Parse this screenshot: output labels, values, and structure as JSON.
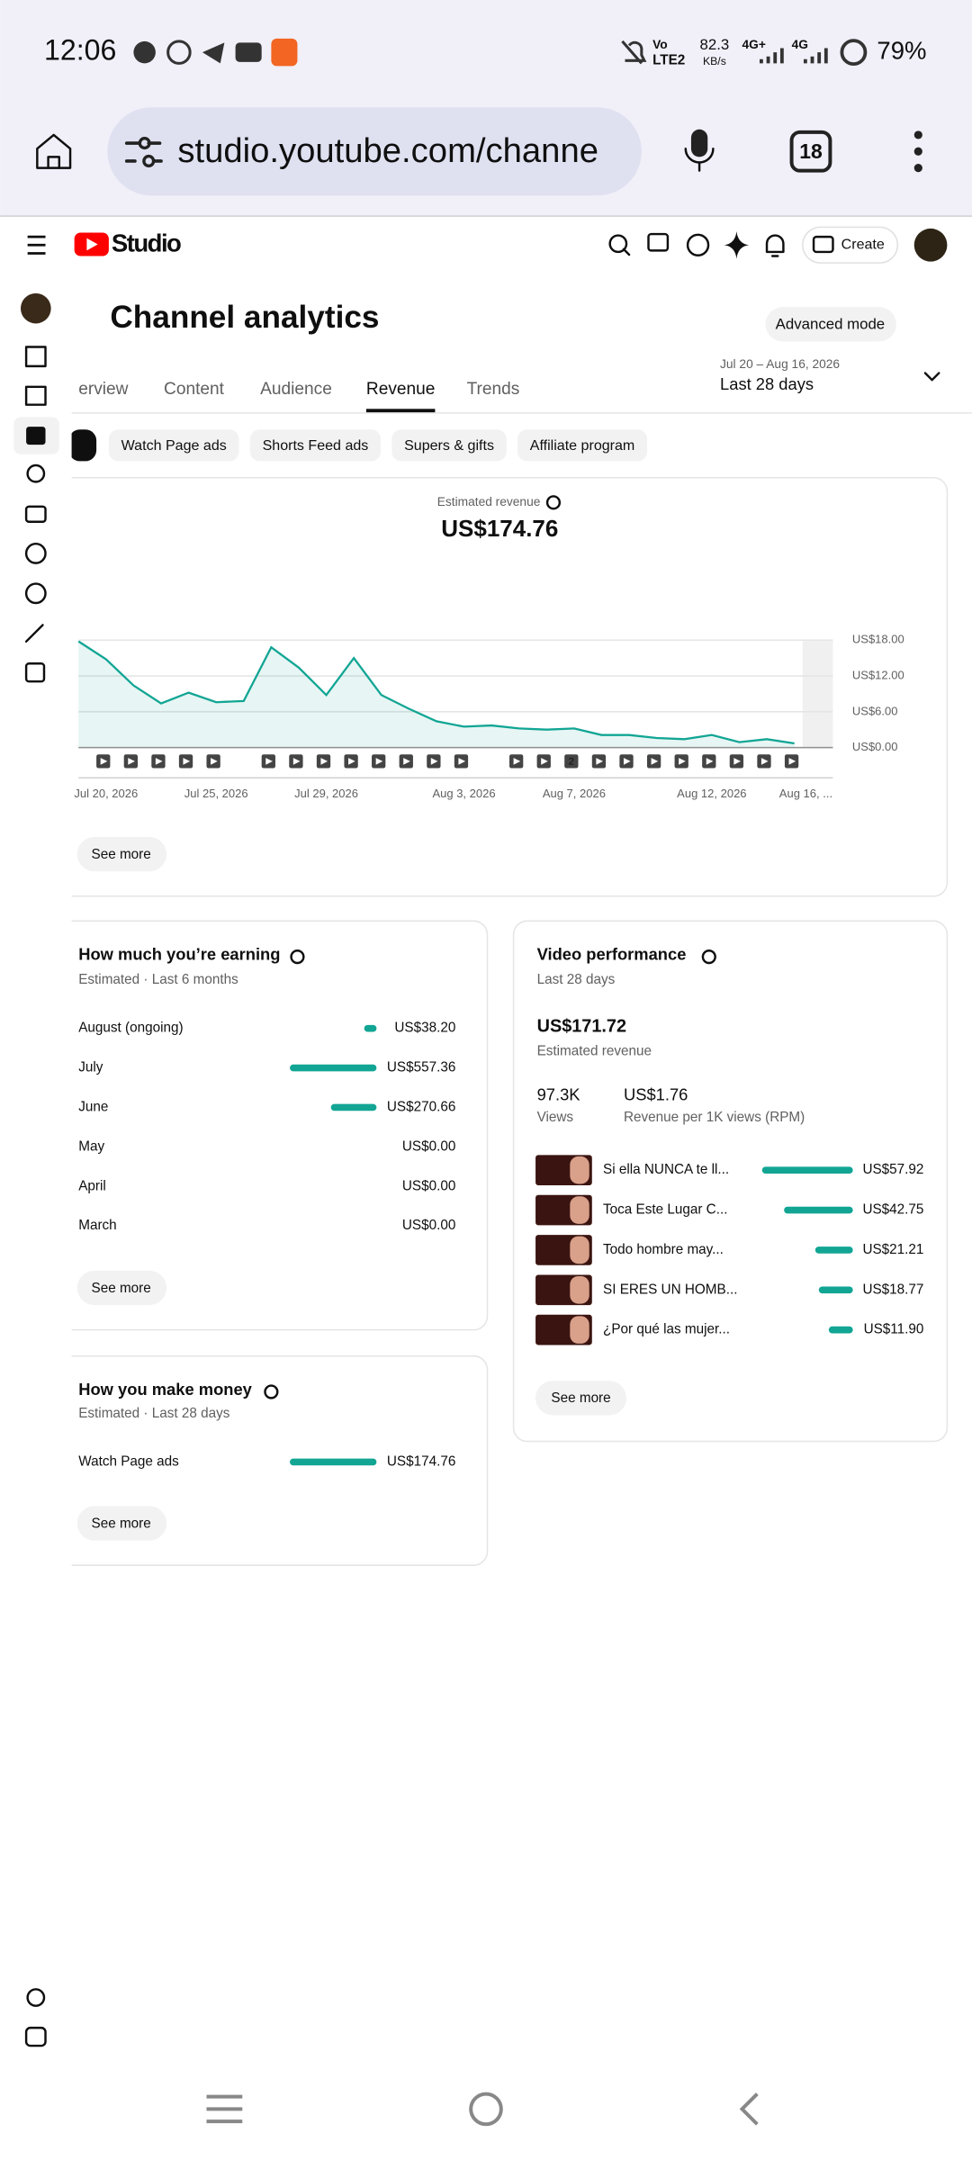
{
  "status_bar": {
    "time": "12:06",
    "volte": "LTE2",
    "speed": "82.3",
    "speed_unit": "KB/s",
    "net1": "4G+",
    "net2": "4G",
    "battery": "79%"
  },
  "browser": {
    "url": "studio.youtube.com/channe",
    "tabs": "18"
  },
  "header": {
    "brand": "Studio",
    "create": "Create"
  },
  "page": {
    "title": "Channel analytics",
    "advanced": "Advanced mode",
    "tabs": [
      "erview",
      "Content",
      "Audience",
      "Revenue",
      "Trends"
    ],
    "date_range": "Jul 20 – Aug 16, 2026",
    "period": "Last 28 days",
    "chips": [
      "Watch Page ads",
      "Shorts Feed ads",
      "Supers & gifts",
      "Affiliate program"
    ]
  },
  "chart_data": {
    "type": "line",
    "title": "Estimated revenue",
    "subtitle": "US$174.76",
    "categories": [
      "Jul 20, 2026",
      null,
      null,
      null,
      null,
      "Jul 25, 2026",
      null,
      null,
      null,
      "Jul 29, 2026",
      null,
      null,
      null,
      null,
      "Aug 3, 2026",
      null,
      null,
      null,
      "Aug 7, 2026",
      null,
      null,
      null,
      null,
      "Aug 12, 2026",
      null,
      null,
      null,
      "Aug 16, ..."
    ],
    "values": [
      17.8,
      14.8,
      10.4,
      7.4,
      9.2,
      7.6,
      7.8,
      16.8,
      13.4,
      8.8,
      15.0,
      8.8,
      6.5,
      4.4,
      3.5,
      3.7,
      3.2,
      3.0,
      3.2,
      2.1,
      2.1,
      1.6,
      1.4,
      2.1,
      0.9,
      1.4,
      0.7,
      null
    ],
    "color": "#12a594",
    "ylim": [
      0,
      18
    ],
    "yticks": [
      {
        "value": 0,
        "label": "US$0.00"
      },
      {
        "value": 6,
        "label": "US$6.00"
      },
      {
        "value": 12,
        "label": "US$12.00"
      },
      {
        "value": 18,
        "label": "US$18.00"
      }
    ],
    "grid": true,
    "marker_label": "2"
  },
  "chart_card": {
    "see_more": "See more"
  },
  "earning": {
    "title": "How much you’re earning",
    "subtitle": "Estimated · Last 6 months",
    "rows": [
      {
        "label": "August (ongoing)",
        "value": 38.2,
        "value_label": "US$38.20"
      },
      {
        "label": "July",
        "value": 557.36,
        "value_label": "US$557.36"
      },
      {
        "label": "June",
        "value": 270.66,
        "value_label": "US$270.66"
      },
      {
        "label": "May",
        "value": 0,
        "value_label": "US$0.00"
      },
      {
        "label": "April",
        "value": 0,
        "value_label": "US$0.00"
      },
      {
        "label": "March",
        "value": 0,
        "value_label": "US$0.00"
      }
    ],
    "see_more": "See more"
  },
  "make_money": {
    "title": "How you make money",
    "subtitle": "Estimated · Last 28 days",
    "rows": [
      {
        "label": "Watch Page ads",
        "value": 174.76,
        "value_label": "US$174.76"
      }
    ],
    "see_more": "See more"
  },
  "video_performance": {
    "title": "Video performance",
    "subtitle": "Last 28 days",
    "revenue": "US$171.72",
    "revenue_label": "Estimated revenue",
    "views": "97.3K",
    "views_label": "Views",
    "rpm": "US$1.76",
    "rpm_label": "Revenue per 1K views (RPM)",
    "videos": [
      {
        "title": "Si ella NUNCA te ll...",
        "value": 57.92,
        "value_label": "US$57.92"
      },
      {
        "title": "Toca Este Lugar C...",
        "value": 42.75,
        "value_label": "US$42.75"
      },
      {
        "title": "Todo hombre may...",
        "value": 21.21,
        "value_label": "US$21.21"
      },
      {
        "title": "SI ERES UN HOMB...",
        "value": 18.77,
        "value_label": "US$18.77"
      },
      {
        "title": "¿Por qué las mujer...",
        "value": 11.9,
        "value_label": "US$11.90"
      }
    ],
    "see_more": "See more"
  }
}
